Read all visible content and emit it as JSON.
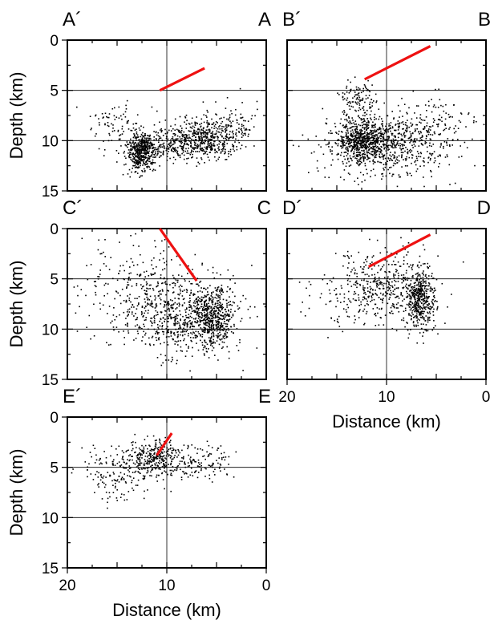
{
  "chart_data": [
    {
      "type": "scatter",
      "panel": "A",
      "left_label": "A´",
      "right_label": "A",
      "ylabel": "Depth (km)",
      "xlabel": "",
      "xlim": [
        20,
        0
      ],
      "ylim": [
        15,
        0
      ],
      "y_ticks": [
        "0",
        "5",
        "10",
        "15"
      ],
      "x_ticks": [],
      "grid": true,
      "fault_trace": [
        [
          10.7,
          5.0
        ],
        [
          6.2,
          2.8
        ]
      ],
      "clusters": [
        {
          "cx": 12.5,
          "cy": 11.2,
          "sx": 0.7,
          "sy": 0.9,
          "n": 420
        },
        {
          "cx": 6.2,
          "cy": 9.8,
          "sx": 1.8,
          "sy": 1.0,
          "n": 460
        },
        {
          "cx": 10.0,
          "cy": 10.4,
          "sx": 2.6,
          "sy": 0.9,
          "n": 260
        },
        {
          "cx": 15.5,
          "cy": 8.3,
          "sx": 1.2,
          "sy": 1.0,
          "n": 70
        },
        {
          "cx": 3.5,
          "cy": 8.2,
          "sx": 1.4,
          "sy": 1.3,
          "n": 90
        }
      ]
    },
    {
      "type": "scatter",
      "panel": "B",
      "left_label": "B´",
      "right_label": "B",
      "ylabel": "",
      "xlabel": "",
      "xlim": [
        20,
        0
      ],
      "ylim": [
        15,
        0
      ],
      "y_ticks": [],
      "x_ticks": [],
      "grid": true,
      "fault_trace": [
        [
          12.2,
          3.9
        ],
        [
          5.6,
          0.6
        ]
      ],
      "clusters": [
        {
          "cx": 12.2,
          "cy": 9.9,
          "sx": 1.3,
          "sy": 1.0,
          "n": 520
        },
        {
          "cx": 10.3,
          "cy": 10.4,
          "sx": 3.2,
          "sy": 1.5,
          "n": 640
        },
        {
          "cx": 12.8,
          "cy": 6.2,
          "sx": 1.0,
          "sy": 1.0,
          "n": 120
        },
        {
          "cx": 5.5,
          "cy": 8.8,
          "sx": 2.8,
          "sy": 1.8,
          "n": 160
        }
      ]
    },
    {
      "type": "scatter",
      "panel": "C",
      "left_label": "C´",
      "right_label": "C",
      "ylabel": "Depth (km)",
      "xlabel": "",
      "xlim": [
        20,
        0
      ],
      "ylim": [
        15,
        0
      ],
      "y_ticks": [
        "0",
        "5",
        "10",
        "15"
      ],
      "x_ticks": [],
      "grid": true,
      "fault_trace": [
        [
          10.7,
          0.0
        ],
        [
          7.0,
          5.2
        ]
      ],
      "clusters": [
        {
          "cx": 5.5,
          "cy": 9.0,
          "sx": 1.1,
          "sy": 1.4,
          "n": 520
        },
        {
          "cx": 9.0,
          "cy": 8.6,
          "sx": 3.0,
          "sy": 2.1,
          "n": 560
        },
        {
          "cx": 12.5,
          "cy": 5.8,
          "sx": 3.2,
          "sy": 2.2,
          "n": 240
        }
      ]
    },
    {
      "type": "scatter",
      "panel": "D",
      "left_label": "D´",
      "right_label": "D",
      "ylabel": "",
      "xlabel": "Distance (km)",
      "xlim": [
        20,
        0
      ],
      "ylim": [
        15,
        0
      ],
      "y_ticks": [],
      "x_ticks": [
        "20",
        "10",
        "0"
      ],
      "grid": true,
      "fault_trace": [
        [
          11.8,
          3.8
        ],
        [
          5.6,
          0.6
        ]
      ],
      "clusters": [
        {
          "cx": 6.6,
          "cy": 7.0,
          "sx": 0.8,
          "sy": 1.5,
          "n": 460
        },
        {
          "cx": 10.2,
          "cy": 5.8,
          "sx": 2.3,
          "sy": 1.9,
          "n": 380
        },
        {
          "cx": 15.0,
          "cy": 6.8,
          "sx": 2.2,
          "sy": 1.6,
          "n": 60
        }
      ]
    },
    {
      "type": "scatter",
      "panel": "E",
      "left_label": "E´",
      "right_label": "E",
      "ylabel": "Depth (km)",
      "xlabel": "Distance (km)",
      "xlim": [
        20,
        0
      ],
      "ylim": [
        15,
        0
      ],
      "y_ticks": [
        "0",
        "5",
        "10",
        "15"
      ],
      "x_ticks": [
        "20",
        "10",
        "0"
      ],
      "grid": true,
      "fault_trace": [
        [
          11.0,
          3.8
        ],
        [
          9.5,
          1.6
        ]
      ],
      "clusters": [
        {
          "cx": 11.2,
          "cy": 3.9,
          "sx": 1.3,
          "sy": 0.9,
          "n": 260
        },
        {
          "cx": 7.5,
          "cy": 4.6,
          "sx": 2.0,
          "sy": 0.9,
          "n": 160
        },
        {
          "cx": 14.5,
          "cy": 5.6,
          "sx": 1.8,
          "sy": 1.3,
          "n": 180
        }
      ]
    }
  ]
}
